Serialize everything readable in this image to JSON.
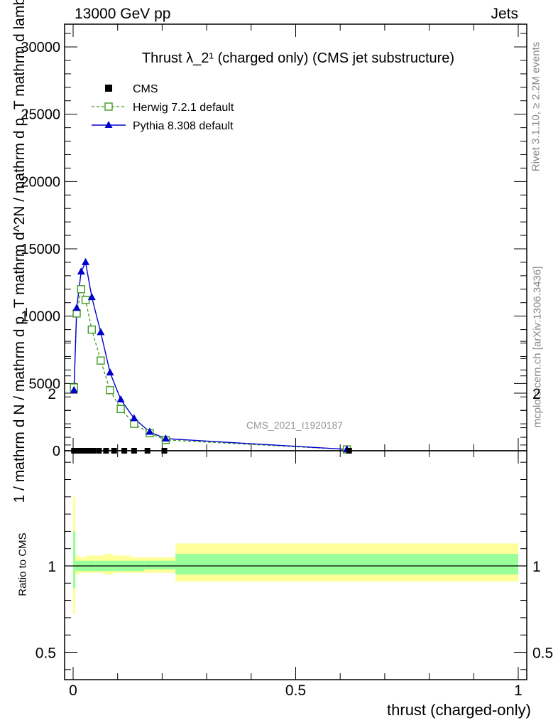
{
  "header": {
    "left": "13000 GeV pp",
    "right": "Jets"
  },
  "side_labels": {
    "rivet": "Rivet 3.1.10, ≥ 2.2M events",
    "mcplots": "mcplots.cern.ch [arXiv:1306.3436]"
  },
  "watermark": "CMS_2021_I1920187",
  "colors": {
    "cms": "#000000",
    "herwig": "#3c9b1e",
    "pythia": "#0000cc",
    "band_outer": "#ffff99",
    "band_inner": "#99ff99"
  },
  "chart_data": [
    {
      "type": "line",
      "title": "Thrust λ_2¹ (charged only) (CMS jet substructure)",
      "ylabel": "1 / mathrm d N / mathrm d p_T mathrm d^2N / mathrm d p_T mathrm d lambda",
      "xlabel": "thrust (charged-only)",
      "xlim": [
        -0.02,
        1.02
      ],
      "ylim": [
        0,
        31500
      ],
      "x_ticks": [
        "0",
        "0.5",
        "1"
      ],
      "y_ticks": [
        "0",
        "5000",
        "10000",
        "15000",
        "20000",
        "25000",
        "30000"
      ],
      "legend": [
        "CMS",
        "Herwig 7.2.1 default",
        "Pythia 8.308 default"
      ],
      "legend_position": "top-left",
      "series": [
        {
          "name": "CMS",
          "marker": "square",
          "x": [
            0.002,
            0.009,
            0.017,
            0.026,
            0.035,
            0.045,
            0.058,
            0.074,
            0.092,
            0.115,
            0.137,
            0.167,
            0.205,
            0.62
          ],
          "y": [
            0,
            0,
            0,
            0,
            0,
            0,
            0,
            0,
            0,
            0,
            0,
            0,
            0,
            0
          ]
        },
        {
          "name": "Herwig 7.2.1 default",
          "marker": "open-square",
          "x": [
            0.002,
            0.008,
            0.018,
            0.028,
            0.042,
            0.062,
            0.083,
            0.107,
            0.137,
            0.172,
            0.208,
            0.615
          ],
          "y": [
            4700,
            10200,
            12000,
            11200,
            9000,
            6700,
            4500,
            3100,
            2000,
            1300,
            800,
            100
          ]
        },
        {
          "name": "Pythia 8.308 default",
          "marker": "filled-triangle",
          "x": [
            0.002,
            0.008,
            0.018,
            0.028,
            0.042,
            0.062,
            0.083,
            0.107,
            0.137,
            0.172,
            0.208,
            0.615
          ],
          "y": [
            4500,
            10600,
            13300,
            14000,
            11400,
            8800,
            5800,
            3800,
            2400,
            1400,
            900,
            100
          ]
        }
      ]
    },
    {
      "type": "area",
      "ylabel": "Ratio to CMS",
      "xlim": [
        -0.02,
        1.02
      ],
      "ylim": [
        0.3,
        2.35
      ],
      "y_ticks": [
        "0.5",
        "1",
        "2"
      ],
      "reference_line": 1,
      "bands": {
        "x_edges": [
          0,
          0.005,
          0.015,
          0.03,
          0.05,
          0.07,
          0.09,
          0.11,
          0.13,
          0.16,
          0.19,
          0.23,
          1.0
        ],
        "outer_low": [
          0.72,
          0.95,
          0.96,
          0.96,
          0.96,
          0.95,
          0.96,
          0.96,
          0.96,
          0.96,
          0.96,
          0.91
        ],
        "outer_high": [
          1.4,
          1.06,
          1.05,
          1.06,
          1.06,
          1.07,
          1.06,
          1.06,
          1.05,
          1.05,
          1.05,
          1.13
        ],
        "inner_low": [
          0.87,
          0.97,
          0.97,
          0.97,
          0.97,
          0.97,
          0.97,
          0.97,
          0.97,
          0.98,
          0.98,
          0.95
        ],
        "inner_high": [
          1.2,
          1.03,
          1.03,
          1.03,
          1.03,
          1.03,
          1.03,
          1.03,
          1.03,
          1.03,
          1.03,
          1.07
        ]
      }
    }
  ]
}
